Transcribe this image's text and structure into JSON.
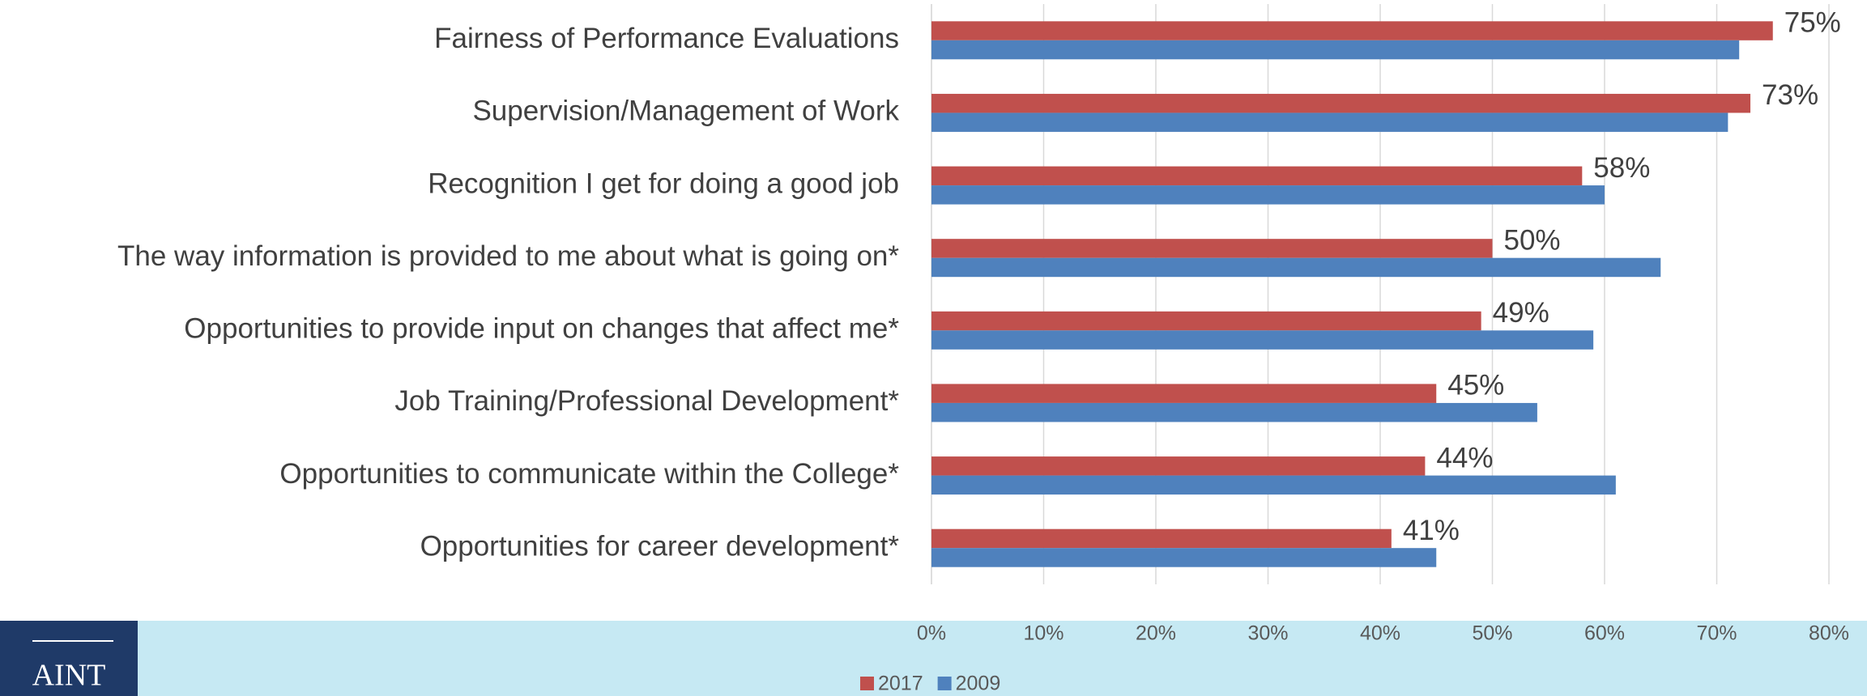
{
  "chart_data": {
    "type": "hbar",
    "categories": [
      "Fairness of Performance Evaluations",
      "Supervision/Management of Work",
      "Recognition I get for doing a good job",
      "The way information is provided to me about what is going on*",
      "Opportunities to provide input on changes that affect me*",
      "Job Training/Professional Development*",
      "Opportunities to communicate within the College*",
      "Opportunities for career development*"
    ],
    "series": [
      {
        "name": "2017",
        "color": "#c0504d",
        "values": [
          75,
          73,
          58,
          50,
          49,
          45,
          44,
          41
        ],
        "value_labels": [
          "75%",
          "73%",
          "58%",
          "50%",
          "49%",
          "45%",
          "44%",
          "41%"
        ]
      },
      {
        "name": "2009",
        "color": "#4f81bd",
        "values": [
          72,
          71,
          60,
          65,
          59,
          54,
          61,
          45
        ]
      }
    ],
    "xlim": [
      0,
      80
    ],
    "xticks": [
      {
        "value": 0,
        "label": "0%"
      },
      {
        "value": 10,
        "label": "10%"
      },
      {
        "value": 20,
        "label": "20%"
      },
      {
        "value": 30,
        "label": "30%"
      },
      {
        "value": 40,
        "label": "40%"
      },
      {
        "value": 50,
        "label": "50%"
      },
      {
        "value": 60,
        "label": "60%"
      },
      {
        "value": 70,
        "label": "70%"
      },
      {
        "value": 80,
        "label": "80%"
      }
    ],
    "grid": true,
    "legend": "bottom"
  },
  "logo_text": "AINT"
}
